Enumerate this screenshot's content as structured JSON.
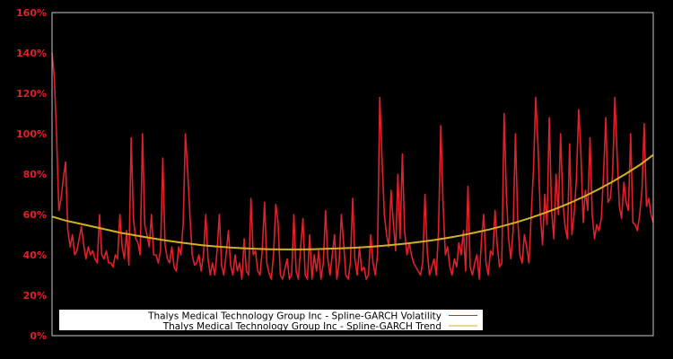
{
  "chart_data": {
    "type": "line",
    "title": "",
    "xlabel": "",
    "ylabel": "",
    "ylim": [
      0,
      160
    ],
    "y_ticks": [
      "0%",
      "20%",
      "40%",
      "60%",
      "80%",
      "100%",
      "120%",
      "140%",
      "160%"
    ],
    "x_ticks": [],
    "grid": false,
    "background": "#000000",
    "legend_position": "lower-left inside",
    "series": [
      {
        "name": "Thalys Medical Technology Group Inc - Spline-GARCH Volatility",
        "color": "#e0202a",
        "values": [
          140,
          128,
          100,
          62,
          68,
          78,
          86,
          52,
          44,
          50,
          40,
          42,
          48,
          54,
          45,
          38,
          44,
          40,
          42,
          38,
          36,
          60,
          40,
          38,
          42,
          36,
          36,
          34,
          40,
          38,
          60,
          44,
          38,
          52,
          35,
          98,
          58,
          48,
          46,
          40,
          100,
          55,
          50,
          44,
          60,
          40,
          40,
          36,
          42,
          88,
          45,
          38,
          36,
          44,
          34,
          32,
          44,
          40,
          55,
          100,
          82,
          60,
          40,
          35,
          36,
          40,
          32,
          40,
          60,
          38,
          30,
          36,
          30,
          42,
          60,
          35,
          30,
          40,
          52,
          35,
          30,
          40,
          32,
          36,
          28,
          48,
          32,
          30,
          68,
          40,
          42,
          32,
          30,
          42,
          66,
          36,
          31,
          28,
          40,
          65,
          56,
          30,
          28,
          33,
          38,
          28,
          30,
          60,
          32,
          28,
          44,
          58,
          30,
          28,
          50,
          28,
          40,
          32,
          42,
          28,
          36,
          62,
          38,
          30,
          40,
          50,
          28,
          36,
          60,
          46,
          30,
          28,
          36,
          68,
          38,
          30,
          44,
          32,
          34,
          28,
          30,
          50,
          36,
          30,
          40,
          118,
          88,
          60,
          50,
          44,
          72,
          56,
          42,
          80,
          48,
          90,
          52,
          40,
          46,
          40,
          36,
          34,
          32,
          30,
          36,
          70,
          42,
          30,
          34,
          38,
          30,
          52,
          104,
          65,
          40,
          44,
          34,
          30,
          38,
          34,
          46,
          40,
          52,
          32,
          74,
          34,
          30,
          36,
          40,
          28,
          48,
          60,
          36,
          30,
          42,
          40,
          62,
          44,
          34,
          36,
          110,
          70,
          48,
          38,
          52,
          100,
          58,
          40,
          36,
          50,
          44,
          36,
          60,
          82,
          118,
          95,
          60,
          45,
          70,
          55,
          108,
          62,
          48,
          80,
          60,
          100,
          66,
          54,
          48,
          95,
          50,
          60,
          78,
          112,
          90,
          56,
          72,
          62,
          98,
          60,
          48,
          55,
          52,
          58,
          80,
          108,
          66,
          68,
          80,
          118,
          90,
          64,
          58,
          76,
          66,
          62,
          100,
          56,
          55,
          52,
          60,
          72,
          105,
          64,
          68,
          60,
          56
        ],
        "x_range": [
          0,
          1
        ]
      },
      {
        "name": "Thalys Medical Technology Group Inc - Spline-GARCH Trend",
        "color": "#d4b020",
        "values": [
          59,
          57,
          55.5,
          54,
          52.5,
          51,
          49.8,
          48.6,
          47.5,
          46.5,
          45.6,
          44.8,
          44.2,
          43.7,
          43.3,
          43.0,
          42.8,
          42.7,
          42.7,
          42.8,
          43.0,
          43.2,
          43.5,
          43.9,
          44.4,
          45.0,
          45.7,
          46.5,
          47.4,
          48.5,
          49.7,
          51.1,
          52.6,
          54.3,
          56.2,
          58.3,
          60.6,
          63.2,
          66.0,
          69.1,
          72.5,
          76.2,
          80.2,
          84.5,
          89.5
        ],
        "x_range": [
          0,
          1
        ]
      }
    ]
  },
  "legend": {
    "items": [
      {
        "label": "Thalys Medical Technology Group Inc - Spline-GARCH Volatility",
        "color": "#e0202a"
      },
      {
        "label": "Thalys Medical Technology Group Inc - Spline-GARCH Trend",
        "color": "#d4b020"
      }
    ]
  }
}
